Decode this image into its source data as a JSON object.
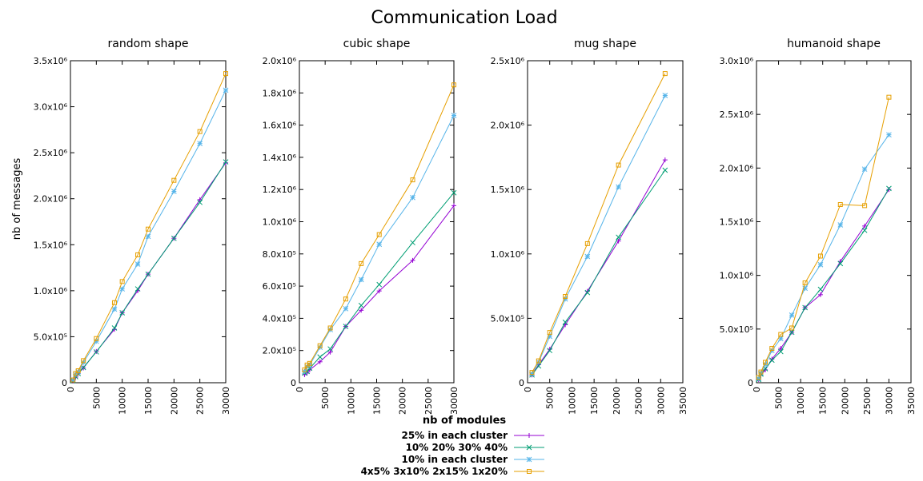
{
  "main_title": "Communication Load",
  "ylabel": "nb of messages",
  "xlabel": "nb of modules",
  "series_styles": [
    {
      "color": "#9400d3",
      "marker": "plus"
    },
    {
      "color": "#009e73",
      "marker": "x"
    },
    {
      "color": "#56b4e9",
      "marker": "star"
    },
    {
      "color": "#e69f00",
      "marker": "square"
    }
  ],
  "legend": {
    "placement": "bottom-center",
    "entries": [
      "25% in each cluster",
      "10% 20% 30% 40%",
      "10% in each cluster",
      "4x5% 3x10% 2x15% 1x20%"
    ]
  },
  "chart_data": [
    {
      "type": "line",
      "title": "random shape",
      "xlim": [
        0,
        30000
      ],
      "ylim": [
        0,
        3500000
      ],
      "xticks": [
        {
          "v": 0,
          "label": "0"
        },
        {
          "v": 5000,
          "label": "5000"
        },
        {
          "v": 10000,
          "label": "10000"
        },
        {
          "v": 15000,
          "label": "15000"
        },
        {
          "v": 20000,
          "label": "20000"
        },
        {
          "v": 25000,
          "label": "25000"
        },
        {
          "v": 30000,
          "label": "30000"
        }
      ],
      "yticks": [
        {
          "v": 0,
          "label": "0"
        },
        {
          "v": 500000,
          "label": "5.0x10⁵"
        },
        {
          "v": 1000000,
          "label": "1.0x10⁶"
        },
        {
          "v": 1500000,
          "label": "1.5x10⁶"
        },
        {
          "v": 2000000,
          "label": "2.0x10⁶"
        },
        {
          "v": 2500000,
          "label": "2.5x10⁶"
        },
        {
          "v": 3000000,
          "label": "3.0x10⁶"
        },
        {
          "v": 3500000,
          "label": "3.5x10⁶"
        }
      ],
      "series": [
        {
          "name": "25% in each cluster",
          "x": [
            500,
            1000,
            1500,
            2500,
            5000,
            8500,
            10000,
            13000,
            15000,
            20000,
            25000,
            30000
          ],
          "y": [
            20000,
            60000,
            100000,
            160000,
            340000,
            580000,
            760000,
            1000000,
            1180000,
            1570000,
            1990000,
            2390000
          ]
        },
        {
          "name": "10% 20% 30% 40%",
          "x": [
            500,
            1000,
            1500,
            2500,
            5000,
            8500,
            10000,
            13000,
            15000,
            20000,
            25000,
            30000
          ],
          "y": [
            20000,
            65000,
            100000,
            165000,
            335000,
            595000,
            760000,
            1020000,
            1180000,
            1570000,
            1960000,
            2400000
          ]
        },
        {
          "name": "10% in each cluster",
          "x": [
            500,
            1000,
            1500,
            2500,
            5000,
            8500,
            10000,
            13000,
            15000,
            20000,
            25000,
            30000
          ],
          "y": [
            30000,
            90000,
            120000,
            220000,
            450000,
            800000,
            1020000,
            1290000,
            1590000,
            2080000,
            2600000,
            3180000
          ]
        },
        {
          "name": "4x5% 3x10% 2x15% 1x20%",
          "x": [
            500,
            1000,
            1500,
            2500,
            5000,
            8500,
            10000,
            13000,
            15000,
            20000,
            25000,
            30000
          ],
          "y": [
            30000,
            100000,
            130000,
            240000,
            480000,
            870000,
            1100000,
            1390000,
            1670000,
            2200000,
            2730000,
            3360000
          ]
        }
      ]
    },
    {
      "type": "line",
      "title": "cubic shape",
      "xlim": [
        0,
        30000
      ],
      "ylim": [
        0,
        2000000
      ],
      "xticks": [
        {
          "v": 0,
          "label": "0"
        },
        {
          "v": 5000,
          "label": "5000"
        },
        {
          "v": 10000,
          "label": "10000"
        },
        {
          "v": 15000,
          "label": "15000"
        },
        {
          "v": 20000,
          "label": "20000"
        },
        {
          "v": 25000,
          "label": "25000"
        },
        {
          "v": 30000,
          "label": "30000"
        }
      ],
      "yticks": [
        {
          "v": 0,
          "label": "0"
        },
        {
          "v": 200000,
          "label": "2.0x10⁵"
        },
        {
          "v": 400000,
          "label": "4.0x10⁵"
        },
        {
          "v": 600000,
          "label": "6.0x10⁵"
        },
        {
          "v": 800000,
          "label": "8.0x10⁵"
        },
        {
          "v": 1000000,
          "label": "1.0x10⁶"
        },
        {
          "v": 1200000,
          "label": "1.2x10⁶"
        },
        {
          "v": 1400000,
          "label": "1.4x10⁶"
        },
        {
          "v": 1600000,
          "label": "1.6x10⁶"
        },
        {
          "v": 1800000,
          "label": "1.8x10⁶"
        },
        {
          "v": 2000000,
          "label": "2.0x10⁶"
        }
      ],
      "series": [
        {
          "name": "25% in each cluster",
          "x": [
            1000,
            1500,
            2000,
            4000,
            6000,
            9000,
            12000,
            15500,
            22000,
            30000
          ],
          "y": [
            50000,
            60000,
            80000,
            130000,
            190000,
            350000,
            450000,
            570000,
            760000,
            1100000
          ]
        },
        {
          "name": "10% 20% 30% 40%",
          "x": [
            1000,
            1500,
            2000,
            4000,
            6000,
            9000,
            12000,
            15500,
            22000,
            30000
          ],
          "y": [
            60000,
            70000,
            90000,
            160000,
            210000,
            350000,
            480000,
            610000,
            870000,
            1180000
          ]
        },
        {
          "name": "10% in each cluster",
          "x": [
            1000,
            1500,
            2000,
            4000,
            6000,
            9000,
            12000,
            15500,
            22000,
            30000
          ],
          "y": [
            70000,
            100000,
            110000,
            220000,
            330000,
            460000,
            640000,
            860000,
            1150000,
            1660000
          ]
        },
        {
          "name": "4x5% 3x10% 2x15% 1x20%",
          "x": [
            1000,
            1500,
            2000,
            4000,
            6000,
            9000,
            12000,
            15500,
            22000,
            30000
          ],
          "y": [
            80000,
            110000,
            120000,
            230000,
            340000,
            520000,
            740000,
            920000,
            1260000,
            1850000
          ]
        }
      ]
    },
    {
      "type": "line",
      "title": "mug shape",
      "xlim": [
        0,
        35000
      ],
      "ylim": [
        0,
        2500000
      ],
      "xticks": [
        {
          "v": 0,
          "label": "0"
        },
        {
          "v": 5000,
          "label": "5000"
        },
        {
          "v": 10000,
          "label": "10000"
        },
        {
          "v": 15000,
          "label": "15000"
        },
        {
          "v": 20000,
          "label": "20000"
        },
        {
          "v": 25000,
          "label": "25000"
        },
        {
          "v": 30000,
          "label": "30000"
        },
        {
          "v": 35000,
          "label": "35000"
        }
      ],
      "yticks": [
        {
          "v": 0,
          "label": "0"
        },
        {
          "v": 500000,
          "label": "5.0x10⁵"
        },
        {
          "v": 1000000,
          "label": "1.0x10⁶"
        },
        {
          "v": 1500000,
          "label": "1.5x10⁶"
        },
        {
          "v": 2000000,
          "label": "2.0x10⁶"
        },
        {
          "v": 2500000,
          "label": "2.5x10⁶"
        }
      ],
      "series": [
        {
          "name": "25% in each cluster",
          "x": [
            1000,
            2500,
            5000,
            8500,
            13500,
            20500,
            31000
          ],
          "y": [
            60000,
            140000,
            260000,
            450000,
            710000,
            1100000,
            1730000
          ]
        },
        {
          "name": "10% 20% 30% 40%",
          "x": [
            1000,
            2500,
            5000,
            8500,
            13500,
            20500,
            31000
          ],
          "y": [
            60000,
            130000,
            250000,
            470000,
            700000,
            1130000,
            1650000
          ]
        },
        {
          "name": "10% in each cluster",
          "x": [
            1000,
            2500,
            5000,
            8500,
            13500,
            20500,
            31000
          ],
          "y": [
            70000,
            160000,
            360000,
            650000,
            980000,
            1520000,
            2230000
          ]
        },
        {
          "name": "4x5% 3x10% 2x15% 1x20%",
          "x": [
            1000,
            2500,
            5000,
            8500,
            13500,
            20500,
            31000
          ],
          "y": [
            80000,
            170000,
            390000,
            670000,
            1080000,
            1690000,
            2400000
          ]
        }
      ]
    },
    {
      "type": "line",
      "title": "humanoid shape",
      "xlim": [
        0,
        35000
      ],
      "ylim": [
        0,
        3000000
      ],
      "xticks": [
        {
          "v": 0,
          "label": "0"
        },
        {
          "v": 5000,
          "label": "5000"
        },
        {
          "v": 10000,
          "label": "10000"
        },
        {
          "v": 15000,
          "label": "15000"
        },
        {
          "v": 20000,
          "label": "20000"
        },
        {
          "v": 25000,
          "label": "25000"
        },
        {
          "v": 30000,
          "label": "30000"
        },
        {
          "v": 35000,
          "label": "35000"
        }
      ],
      "yticks": [
        {
          "v": 0,
          "label": "0"
        },
        {
          "v": 500000,
          "label": "5.0x10⁵"
        },
        {
          "v": 1000000,
          "label": "1.0x10⁶"
        },
        {
          "v": 1500000,
          "label": "1.5x10⁶"
        },
        {
          "v": 2000000,
          "label": "2.0x10⁶"
        },
        {
          "v": 2500000,
          "label": "2.5x10⁶"
        },
        {
          "v": 3000000,
          "label": "3.0x10⁶"
        }
      ],
      "series": [
        {
          "name": "25% in each cluster",
          "x": [
            500,
            1000,
            2000,
            3500,
            5500,
            8000,
            11000,
            14500,
            19000,
            24500,
            30000
          ],
          "y": [
            30000,
            70000,
            120000,
            220000,
            320000,
            470000,
            700000,
            820000,
            1130000,
            1460000,
            1800000
          ]
        },
        {
          "name": "10% 20% 30% 40%",
          "x": [
            500,
            1000,
            2000,
            3500,
            5500,
            8000,
            11000,
            14500,
            19000,
            24500,
            30000
          ],
          "y": [
            30000,
            80000,
            130000,
            210000,
            290000,
            470000,
            700000,
            870000,
            1110000,
            1420000,
            1810000
          ]
        },
        {
          "name": "10% in each cluster",
          "x": [
            500,
            1000,
            2000,
            3500,
            5500,
            8000,
            11000,
            14500,
            19000,
            24500,
            30000
          ],
          "y": [
            40000,
            90000,
            170000,
            300000,
            410000,
            630000,
            880000,
            1100000,
            1470000,
            1990000,
            2310000
          ]
        },
        {
          "name": "4x5% 3x10% 2x15% 1x20%",
          "x": [
            500,
            1000,
            2000,
            3500,
            5500,
            8000,
            11000,
            14500,
            19000,
            24500,
            30000
          ],
          "y": [
            50000,
            100000,
            190000,
            320000,
            450000,
            510000,
            930000,
            1180000,
            1660000,
            1650000,
            2660000
          ]
        }
      ]
    }
  ]
}
